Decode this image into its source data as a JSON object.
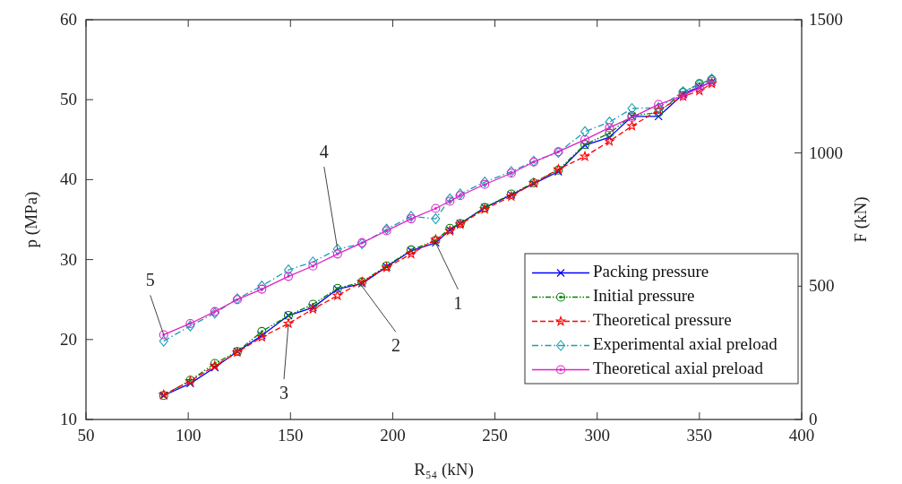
{
  "chart_data": {
    "type": "line",
    "xlabel": "R₅₄ (kN)",
    "ylabel": "p (MPa)",
    "y2label": "F (kN)",
    "x": [
      88,
      101,
      113,
      124,
      136,
      149,
      161,
      173,
      185,
      197,
      209,
      221,
      228,
      233,
      245,
      258,
      269,
      281,
      294,
      306,
      317,
      330,
      342,
      350,
      356
    ],
    "series": [
      {
        "name": "Packing pressure",
        "color": "#0000ff",
        "marker": "cross",
        "line_style": "solid",
        "values": [
          13,
          14.5,
          16.5,
          18.5,
          20.5,
          23.0,
          24.0,
          26.3,
          27.0,
          29.1,
          31.1,
          32.1,
          33.7,
          34.5,
          36.5,
          38.1,
          39.5,
          41.0,
          44.3,
          45.3,
          47.9,
          47.9,
          50.7,
          51.6,
          52.2
        ]
      },
      {
        "name": "Initial pressure",
        "color": "#008000",
        "marker": "circle",
        "line_style": "dotted",
        "values": [
          13,
          14.9,
          17.0,
          18.5,
          21.0,
          23.0,
          24.4,
          26.4,
          27.2,
          29.2,
          31.2,
          32.4,
          33.9,
          34.5,
          36.5,
          38.2,
          39.6,
          41.2,
          44.4,
          45.8,
          48.0,
          48.4,
          50.9,
          52.0,
          52.5
        ]
      },
      {
        "name": "Theoretical pressure",
        "color": "#ff0000",
        "marker": "star",
        "line_style": "dashed",
        "values": [
          13.1,
          14.8,
          16.7,
          18.4,
          20.3,
          22.0,
          23.8,
          25.5,
          27.2,
          29.0,
          30.7,
          32.5,
          33.6,
          34.4,
          36.3,
          37.9,
          39.6,
          41.3,
          42.9,
          44.8,
          46.7,
          48.7,
          50.4,
          51.1,
          52.0
        ]
      },
      {
        "name": "Experimental axial preload",
        "color": "#1a9fb5",
        "marker": "diamond",
        "line_style": "dashed",
        "axis": "y2",
        "values": [
          294,
          351,
          399,
          453,
          501,
          561,
          591,
          639,
          660,
          714,
          762,
          753,
          828,
          846,
          891,
          930,
          969,
          1002,
          1080,
          1116,
          1167,
          1170,
          1230,
          1257,
          1278
        ]
      },
      {
        "name": "Theoretical axial preload",
        "color": "#e020c8",
        "marker": "circle",
        "line_style": "solid",
        "axis": "y2",
        "values": [
          318,
          360,
          405,
          450,
          489,
          537,
          576,
          621,
          663,
          708,
          753,
          792,
          819,
          840,
          882,
          924,
          966,
          1005,
          1050,
          1095,
          1134,
          1182,
          1215,
          1245,
          1269
        ]
      }
    ],
    "xlim": [
      50,
      400
    ],
    "xticks": [
      50,
      100,
      150,
      200,
      250,
      300,
      350,
      400
    ],
    "ylim": [
      10,
      60
    ],
    "yticks": [
      10,
      20,
      30,
      40,
      50,
      60
    ],
    "y2lim": [
      0,
      1500
    ],
    "y2ticks": [
      0,
      500,
      1000,
      1500
    ],
    "annotations": [
      {
        "text": "1",
        "x": 221,
        "y": 32.1
      },
      {
        "text": "2",
        "x": 184,
        "y": 27.0
      },
      {
        "text": "3",
        "x": 149,
        "y": 22.0
      },
      {
        "text": "4",
        "x": 173,
        "y": 31.3
      },
      {
        "text": "5",
        "x": 88,
        "y": 20.6
      }
    ],
    "grid": false,
    "legend": "bottom right"
  }
}
